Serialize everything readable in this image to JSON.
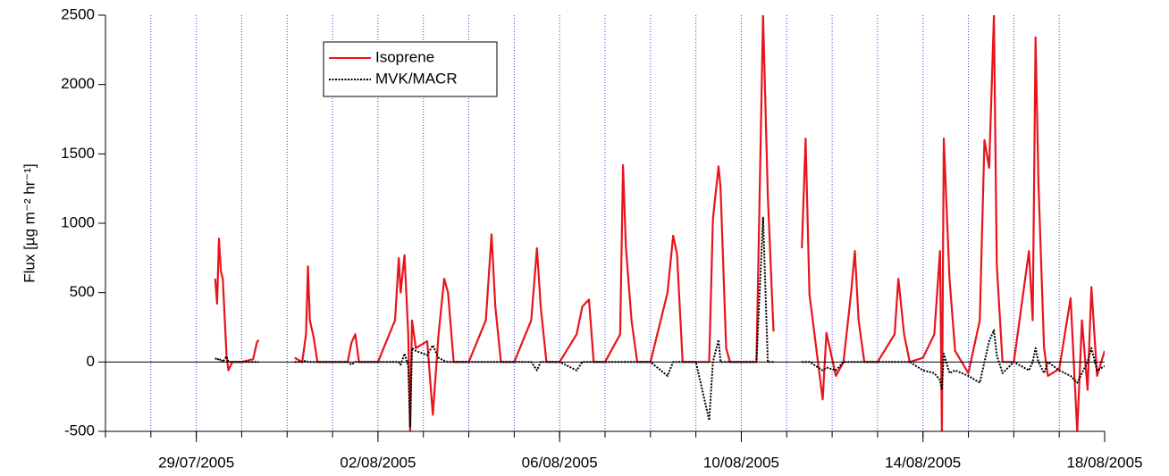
{
  "chart_data": {
    "type": "line",
    "ylabel": "Flux [µg m⁻² hr⁻¹]",
    "xlim": [
      "2005-07-27",
      "2005-08-18"
    ],
    "xticks": [
      {
        "value": "2005-07-29",
        "label": "29/07/2005"
      },
      {
        "value": "2005-08-02",
        "label": "02/08/2005"
      },
      {
        "value": "2005-08-06",
        "label": "06/08/2005"
      },
      {
        "value": "2005-08-10",
        "label": "10/08/2005"
      },
      {
        "value": "2005-08-14",
        "label": "14/08/2005"
      },
      {
        "value": "2005-08-18",
        "label": "18/08/2005"
      }
    ],
    "xminor_ticks": [
      "2005-07-27",
      "2005-07-28",
      "2005-07-29",
      "2005-07-30",
      "2005-07-31",
      "2005-08-01",
      "2005-08-02",
      "2005-08-03",
      "2005-08-04",
      "2005-08-05",
      "2005-08-06",
      "2005-08-07",
      "2005-08-08",
      "2005-08-09",
      "2005-08-10",
      "2005-08-11",
      "2005-08-12",
      "2005-08-13",
      "2005-08-14",
      "2005-08-15",
      "2005-08-16",
      "2005-08-17",
      "2005-08-18"
    ],
    "ylim": [
      -500,
      2500
    ],
    "yticks": [
      -500,
      0,
      500,
      1000,
      1500,
      2000,
      2500
    ],
    "grid": true,
    "grid_color": "#3c3cd2",
    "legend": "top",
    "x": [
      "2005-07-29T10:00",
      "2005-07-29T11:00",
      "2005-07-29T12:00",
      "2005-07-29T13:00",
      "2005-07-29T14:00",
      "2005-07-29T16:00",
      "2005-07-29T17:00",
      "2005-07-29T19:00",
      "2005-07-30T00:00",
      "2005-07-30T06:00",
      "2005-07-30T08:00",
      "2005-07-30T09:00",
      "2005-07-30T10:00",
      "2005-07-31T04:00",
      "2005-07-31T08:00",
      "2005-07-31T10:00",
      "2005-07-31T11:00",
      "2005-07-31T12:00",
      "2005-07-31T14:00",
      "2005-07-31T16:00",
      "2005-08-01T00:00",
      "2005-08-01T08:00",
      "2005-08-01T10:00",
      "2005-08-01T12:00",
      "2005-08-01T14:00",
      "2005-08-02T00:00",
      "2005-08-02T09:00",
      "2005-08-02T11:00",
      "2005-08-02T12:00",
      "2005-08-02T14:00",
      "2005-08-02T16:00",
      "2005-08-02T17:00",
      "2005-08-02T18:00",
      "2005-08-02T20:00",
      "2005-08-03T02:00",
      "2005-08-03T05:00",
      "2005-08-03T08:00",
      "2005-08-03T11:00",
      "2005-08-03T13:00",
      "2005-08-03T16:00",
      "2005-08-04T00:00",
      "2005-08-04T09:00",
      "2005-08-04T12:00",
      "2005-08-04T14:00",
      "2005-08-04T17:00",
      "2005-08-05T00:00",
      "2005-08-05T09:00",
      "2005-08-05T12:00",
      "2005-08-05T14:00",
      "2005-08-05T17:00",
      "2005-08-06T00:00",
      "2005-08-06T09:00",
      "2005-08-06T12:00",
      "2005-08-06T15:30",
      "2005-08-06T18:00",
      "2005-08-07T00:00",
      "2005-08-07T08:00",
      "2005-08-07T09:30",
      "2005-08-07T11:00",
      "2005-08-07T14:00",
      "2005-08-07T17:00",
      "2005-08-08T00:00",
      "2005-08-08T09:00",
      "2005-08-08T12:00",
      "2005-08-08T14:00",
      "2005-08-08T17:00",
      "2005-08-09T00:00",
      "2005-08-09T07:00",
      "2005-08-09T09:00",
      "2005-08-09T12:00",
      "2005-08-09T13:00",
      "2005-08-09T16:00",
      "2005-08-09T18:00",
      "2005-08-10T00:00",
      "2005-08-10T08:00",
      "2005-08-10T11:30",
      "2005-08-10T14:00",
      "2005-08-10T17:00",
      "2005-08-10T18:00",
      "2005-08-11T08:00",
      "2005-08-11T10:00",
      "2005-08-11T12:00",
      "2005-08-11T19:00",
      "2005-08-11T21:00",
      "2005-08-12T02:00",
      "2005-08-12T06:00",
      "2005-08-12T10:00",
      "2005-08-12T12:00",
      "2005-08-12T14:00",
      "2005-08-12T17:00",
      "2005-08-13T00:00",
      "2005-08-13T09:00",
      "2005-08-13T11:00",
      "2005-08-13T14:00",
      "2005-08-13T17:00",
      "2005-08-14T00:00",
      "2005-08-14T06:00",
      "2005-08-14T09:00",
      "2005-08-14T10:00",
      "2005-08-14T11:00",
      "2005-08-14T14:00",
      "2005-08-14T17:00",
      "2005-08-15T00:00",
      "2005-08-15T06:00",
      "2005-08-15T08:30",
      "2005-08-15T11:00",
      "2005-08-15T13:30",
      "2005-08-15T15:00",
      "2005-08-15T18:00",
      "2005-08-16T00:00",
      "2005-08-16T08:00",
      "2005-08-16T10:00",
      "2005-08-16T11:30",
      "2005-08-16T13:00",
      "2005-08-16T16:00",
      "2005-08-16T18:00",
      "2005-08-17T00:00",
      "2005-08-17T06:00",
      "2005-08-17T09:30",
      "2005-08-17T12:00",
      "2005-08-17T15:00",
      "2005-08-17T17:00",
      "2005-08-17T20:00",
      "2005-08-18T00:00"
    ],
    "series": [
      {
        "name": "Isoprene",
        "color": "#e8141c",
        "style": "solid",
        "values": [
          600,
          420,
          890,
          650,
          600,
          40,
          -60,
          0,
          0,
          20,
          140,
          160,
          null,
          30,
          0,
          200,
          690,
          300,
          180,
          0,
          0,
          0,
          140,
          200,
          0,
          0,
          300,
          750,
          500,
          770,
          200,
          -500,
          300,
          100,
          150,
          -380,
          200,
          600,
          500,
          0,
          0,
          300,
          920,
          400,
          0,
          0,
          300,
          820,
          400,
          0,
          0,
          200,
          400,
          450,
          0,
          0,
          200,
          1420,
          830,
          300,
          0,
          0,
          500,
          910,
          780,
          0,
          0,
          0,
          1030,
          1410,
          1260,
          100,
          0,
          0,
          0,
          2500,
          1200,
          220,
          null,
          820,
          1610,
          490,
          -270,
          210,
          -100,
          0,
          500,
          800,
          300,
          0,
          0,
          200,
          600,
          200,
          0,
          30,
          200,
          800,
          -500,
          1610,
          600,
          80,
          -80,
          300,
          1600,
          1400,
          2500,
          700,
          0,
          0,
          800,
          300,
          2340,
          1300,
          100,
          -100,
          -50,
          460,
          -500,
          300,
          -200,
          540,
          -100,
          80
        ]
      },
      {
        "name": "MVK/MACR",
        "color": "#000000",
        "style": "dotted",
        "values": [
          20,
          30,
          10,
          20,
          0,
          40,
          0,
          0,
          0,
          0,
          0,
          0,
          null,
          0,
          0,
          10,
          0,
          0,
          0,
          0,
          0,
          0,
          -20,
          0,
          0,
          0,
          0,
          0,
          -20,
          60,
          -30,
          -470,
          100,
          80,
          50,
          120,
          30,
          10,
          0,
          0,
          0,
          0,
          0,
          0,
          0,
          0,
          0,
          -60,
          0,
          0,
          0,
          -60,
          0,
          0,
          0,
          0,
          0,
          0,
          0,
          0,
          0,
          0,
          -100,
          0,
          0,
          0,
          0,
          -420,
          0,
          160,
          0,
          0,
          0,
          0,
          0,
          1040,
          0,
          0,
          null,
          0,
          0,
          0,
          -60,
          -40,
          -60,
          0,
          0,
          0,
          0,
          0,
          0,
          0,
          0,
          0,
          0,
          -60,
          -80,
          -130,
          -200,
          60,
          -80,
          -60,
          -100,
          -150,
          0,
          150,
          230,
          50,
          -80,
          0,
          -60,
          0,
          100,
          0,
          -80,
          0,
          -60,
          -100,
          -150,
          -80,
          0,
          100,
          -60,
          -30
        ]
      }
    ]
  }
}
